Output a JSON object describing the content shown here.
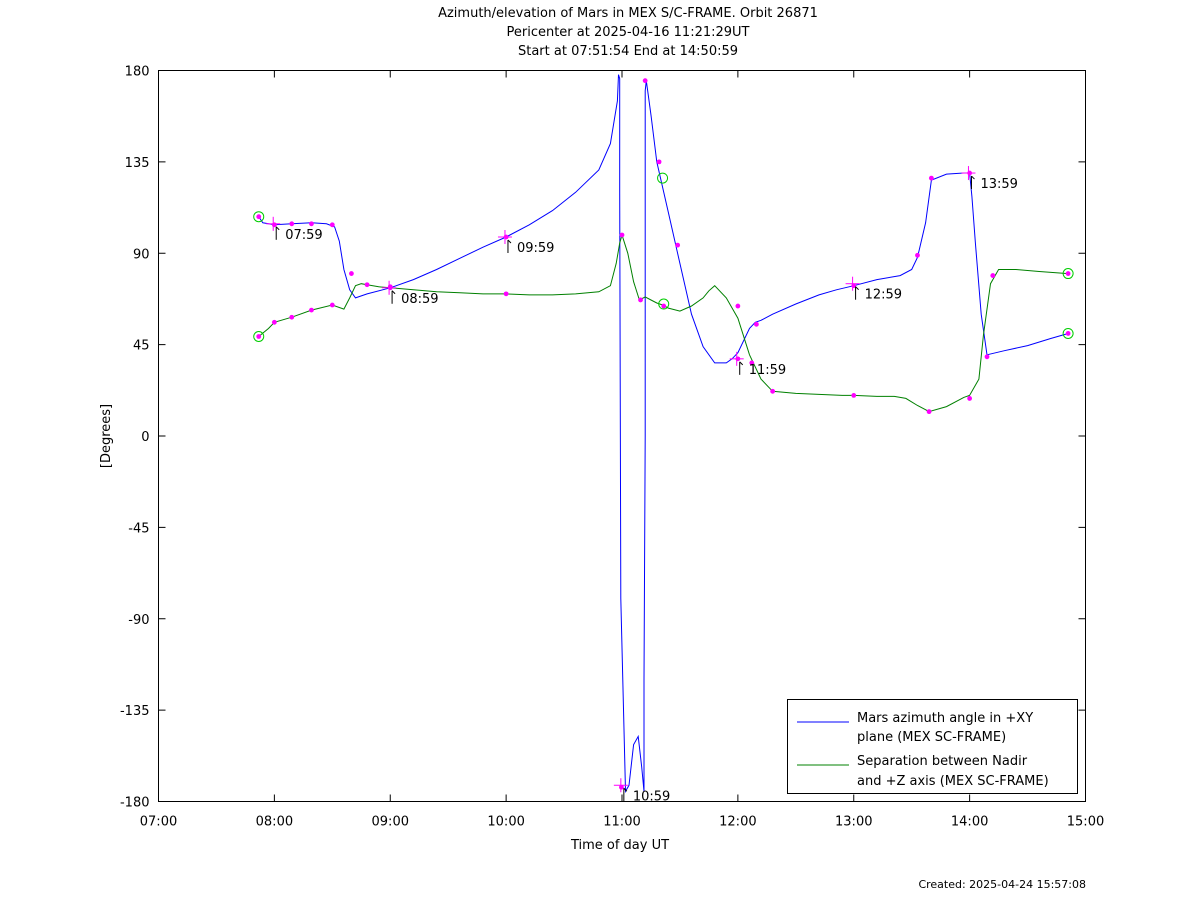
{
  "chart_data": {
    "type": "line",
    "title": [
      "Azimuth/elevation of Mars in MEX S/C-FRAME.  Orbit 26871",
      "Pericenter at 2025-04-16 11:21:29UT",
      "Start at 07:51:54 End at 14:50:59"
    ],
    "xlabel": "Time of day UT",
    "ylabel": "[Degrees]",
    "xlim": [
      7.0,
      15.0
    ],
    "ylim": [
      -180,
      180
    ],
    "x_ticks": [
      7,
      8,
      9,
      10,
      11,
      12,
      13,
      14,
      15
    ],
    "x_tick_labels": [
      "07:00",
      "08:00",
      "09:00",
      "10:00",
      "11:00",
      "12:00",
      "13:00",
      "14:00",
      "15:00"
    ],
    "y_ticks": [
      180,
      135,
      90,
      45,
      0,
      -45,
      -90,
      -135,
      -180
    ],
    "y_tick_labels": [
      "180",
      "135",
      "90",
      "45",
      "0",
      "-45",
      "-90",
      "-135",
      "-180"
    ],
    "legend_position": "bottom-right",
    "series": [
      {
        "name": "Mars azimuth angle in +XY plane (MEX SC-FRAME)",
        "legend_lines": [
          "Mars azimuth angle in +XY",
          "plane (MEX SC-FRAME)"
        ],
        "color": "#0000ff",
        "x": [
          7.865,
          7.9,
          8.0,
          8.15,
          8.32,
          8.45,
          8.52,
          8.56,
          8.6,
          8.65,
          8.7,
          8.75,
          8.8,
          9.0,
          9.2,
          9.4,
          9.6,
          9.8,
          10.0,
          10.2,
          10.4,
          10.6,
          10.8,
          10.9,
          10.96,
          10.97,
          10.98,
          10.98,
          10.99,
          11.03,
          11.06,
          11.1,
          11.14,
          11.17,
          11.19,
          11.19,
          11.2,
          11.2,
          11.21,
          11.25,
          11.3,
          11.4,
          11.5,
          11.6,
          11.7,
          11.8,
          11.9,
          11.95,
          12.0,
          12.1,
          12.15,
          12.2,
          12.3,
          12.5,
          12.7,
          12.85,
          13.0,
          13.2,
          13.4,
          13.5,
          13.55,
          13.62,
          13.67,
          13.8,
          13.95,
          14.0,
          14.02,
          14.05,
          14.1,
          14.15,
          14.3,
          14.5,
          14.7,
          14.85
        ],
        "y": [
          108,
          105,
          104,
          104.5,
          105,
          104.5,
          103,
          96,
          82,
          72,
          68,
          69,
          70,
          73,
          77,
          82,
          87.5,
          93,
          98,
          104,
          111,
          120,
          131,
          144,
          165,
          178,
          176,
          120,
          -80,
          -175,
          -172,
          -152,
          -148,
          -163,
          -175,
          -120,
          0,
          170,
          175,
          158,
          135,
          110,
          85,
          60,
          44,
          36,
          36,
          38,
          41,
          53,
          56,
          57,
          60,
          65,
          69.5,
          72,
          74,
          77,
          79,
          82,
          88,
          105,
          126,
          129,
          129.5,
          129.5,
          118,
          95,
          60,
          40,
          42,
          44.5,
          48,
          50.5
        ],
        "markers": [
          [
            7.865,
            108
          ],
          [
            8.0,
            104
          ],
          [
            8.15,
            104.5
          ],
          [
            8.32,
            104.5
          ],
          [
            8.5,
            104
          ],
          [
            8.665,
            80
          ],
          [
            9.0,
            73
          ],
          [
            10.0,
            98
          ],
          [
            10.995,
            -173
          ],
          [
            11.2,
            175
          ],
          [
            11.32,
            135
          ],
          [
            11.48,
            94
          ],
          [
            12.0,
            38
          ],
          [
            12.16,
            55
          ],
          [
            13.0,
            74
          ],
          [
            13.55,
            89
          ],
          [
            13.67,
            127
          ],
          [
            14.0,
            129.5
          ],
          [
            14.15,
            39
          ],
          [
            14.85,
            50.5
          ]
        ]
      },
      {
        "name": "Separation between Nadir and +Z axis (MEX SC-FRAME)",
        "legend_lines": [
          "Separation between Nadir",
          "and +Z axis (MEX SC-FRAME)"
        ],
        "color": "#008000",
        "x": [
          7.865,
          7.95,
          8.0,
          8.15,
          8.32,
          8.5,
          8.6,
          8.65,
          8.7,
          8.75,
          8.8,
          8.9,
          9.0,
          9.2,
          9.4,
          9.6,
          9.8,
          10.0,
          10.2,
          10.4,
          10.6,
          10.8,
          10.9,
          10.95,
          10.98,
          11.0,
          11.05,
          11.1,
          11.15,
          11.2,
          11.25,
          11.3,
          11.35,
          11.4,
          11.5,
          11.6,
          11.7,
          11.75,
          11.8,
          11.9,
          12.0,
          12.1,
          12.2,
          12.3,
          12.5,
          12.7,
          12.9,
          13.0,
          13.2,
          13.35,
          13.45,
          13.55,
          13.65,
          13.8,
          13.95,
          14.0,
          14.08,
          14.12,
          14.18,
          14.25,
          14.4,
          14.6,
          14.85
        ],
        "y": [
          49,
          53,
          56,
          58.5,
          62,
          64.5,
          62.5,
          68,
          74,
          75,
          74.5,
          73.5,
          73,
          72,
          71,
          70.5,
          70,
          70,
          69.5,
          69.5,
          70,
          71,
          74,
          85,
          95,
          99,
          90,
          76,
          67,
          68.5,
          67,
          65.5,
          64.5,
          63,
          61.5,
          64,
          68,
          71.5,
          74,
          68,
          58,
          40,
          28,
          22,
          21,
          20.5,
          20,
          20,
          19.5,
          19.5,
          18.5,
          15,
          12,
          14.5,
          19,
          20,
          28,
          50,
          75,
          82,
          82,
          81,
          80
        ],
        "markers": [
          [
            7.865,
            49
          ],
          [
            8.0,
            56
          ],
          [
            8.15,
            58.5
          ],
          [
            8.32,
            62
          ],
          [
            8.5,
            64.5
          ],
          [
            8.8,
            74.5
          ],
          [
            9.0,
            73.5
          ],
          [
            10.0,
            70
          ],
          [
            11.0,
            99
          ],
          [
            11.16,
            67
          ],
          [
            11.36,
            64
          ],
          [
            12.0,
            64
          ],
          [
            12.12,
            36
          ],
          [
            12.3,
            22
          ],
          [
            13.0,
            20
          ],
          [
            13.65,
            12
          ],
          [
            14.0,
            18.5
          ],
          [
            14.2,
            79
          ],
          [
            14.85,
            80
          ]
        ]
      }
    ],
    "circle_markers": [
      [
        7.865,
        108
      ],
      [
        7.865,
        49
      ],
      [
        11.35,
        127
      ],
      [
        11.36,
        65
      ],
      [
        14.85,
        80
      ],
      [
        14.85,
        50.5
      ]
    ],
    "time_annotations": [
      {
        "label": "07:59",
        "x": 7.99,
        "y": 104.5
      },
      {
        "label": "08:59",
        "x": 8.99,
        "y": 73
      },
      {
        "label": "09:59",
        "x": 9.99,
        "y": 98
      },
      {
        "label": "10:59",
        "x": 10.99,
        "y": -172
      },
      {
        "label": "11:59",
        "x": 11.99,
        "y": 38
      },
      {
        "label": "12:59",
        "x": 12.99,
        "y": 75
      },
      {
        "label": "13:59",
        "x": 13.99,
        "y": 129.5
      }
    ]
  },
  "footer": {
    "created": "Created: 2025-04-24 15:57:08"
  }
}
